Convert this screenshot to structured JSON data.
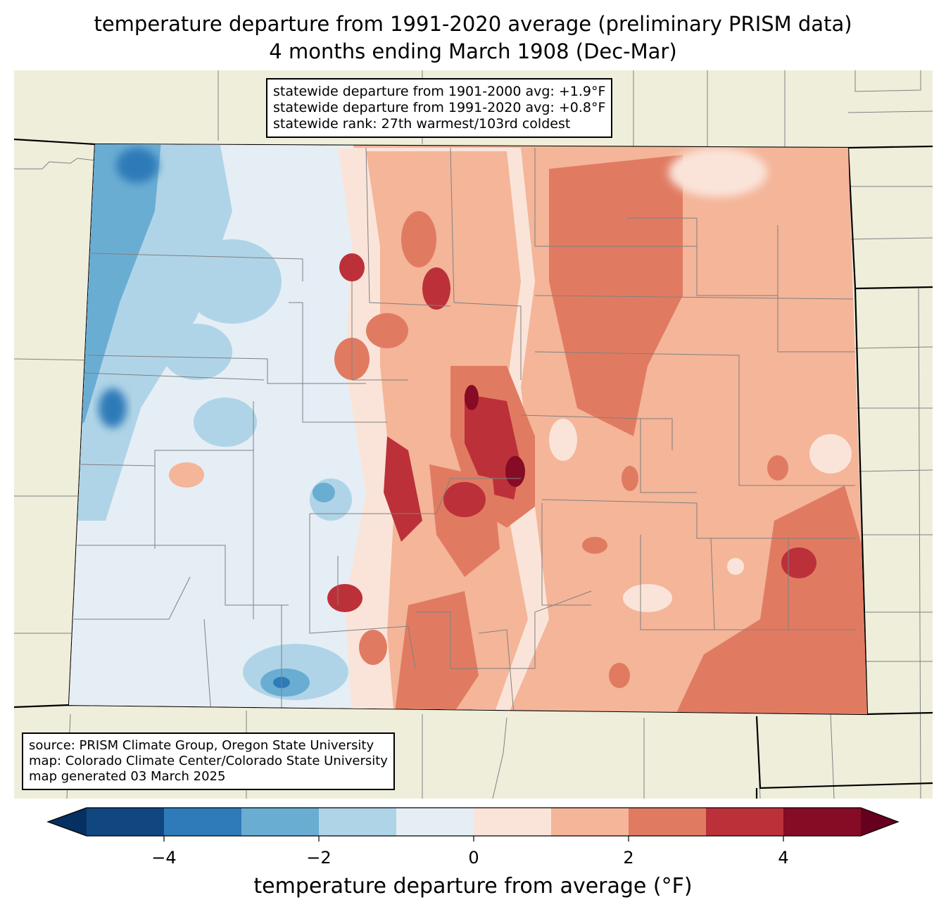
{
  "title": {
    "line1": "temperature departure from 1991-2020 average (preliminary PRISM data)",
    "line2": "4 months ending March 1908 (Dec-Mar)"
  },
  "stats": {
    "line1": "statewide departure from 1901-2000 avg: +1.9°F",
    "line2": "statewide departure from 1991-2020 avg: +0.8°F",
    "line3": "statewide rank: 27th warmest/103rd coldest"
  },
  "source": {
    "line1": "source: PRISM Climate Group, Oregon State University",
    "line2": "map: Colorado Climate Center/Colorado State University",
    "line3": "map generated 03 March 2025"
  },
  "colorbar": {
    "label": "temperature departure from average (°F)",
    "levels": [
      -5,
      -4,
      -3,
      -2,
      -1,
      0,
      1,
      2,
      3,
      4,
      5
    ],
    "colors": [
      "#114780",
      "#2f7ab8",
      "#6aadd3",
      "#b0d4e7",
      "#e5eef5",
      "#fae4d9",
      "#f4b599",
      "#e07b62",
      "#bc3139",
      "#860b24"
    ],
    "under_color": "#053061",
    "over_color": "#67001f",
    "ticks": [
      {
        "value": -4,
        "label": "−4"
      },
      {
        "value": -2,
        "label": "−2"
      },
      {
        "value": 0,
        "label": "0"
      },
      {
        "value": 2,
        "label": "2"
      },
      {
        "value": 4,
        "label": "4"
      }
    ]
  },
  "map_colors": {
    "land_background": "#efeedb",
    "county_lines": "#808080",
    "state_lines": "#000000"
  }
}
